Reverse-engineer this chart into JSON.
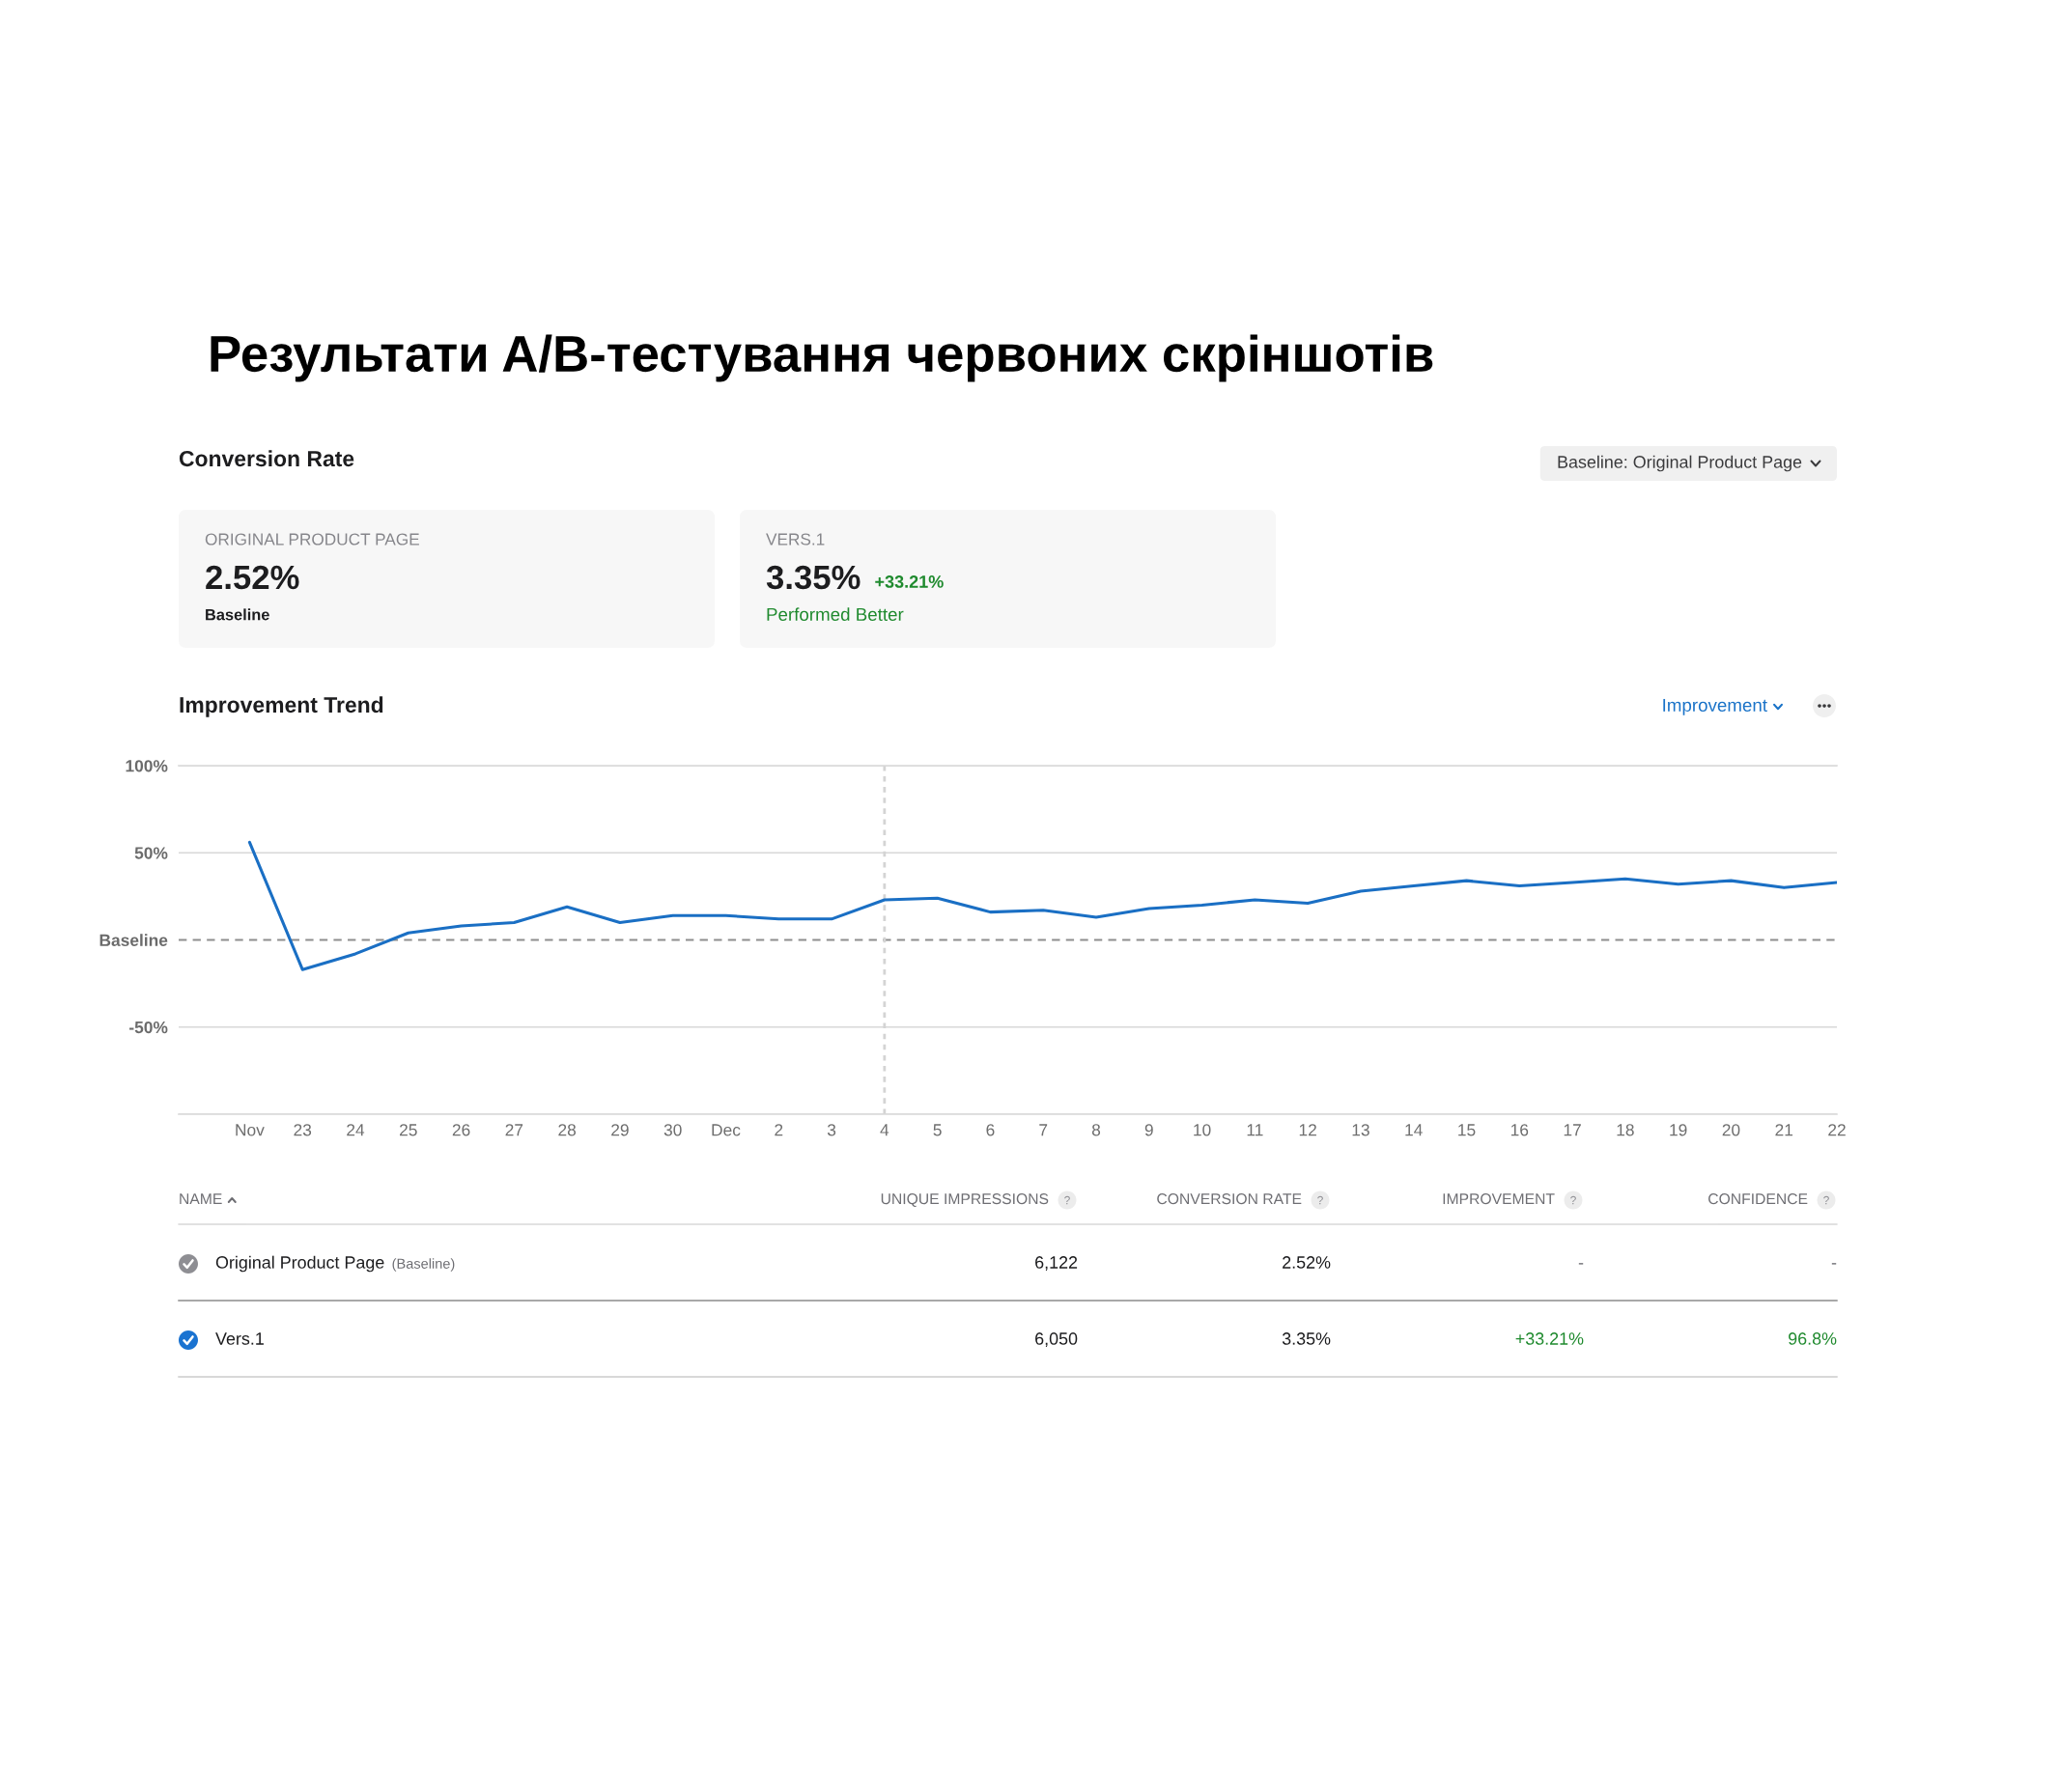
{
  "chart_data": [
    {
      "type": "other",
      "title": "Результати A/B-тестування червоних скріншотів",
      "subtitle": "Conversion Rate",
      "annotations": [
        "Baseline: Original Product Page",
        "ORIGINAL PRODUCT PAGE",
        "2.52%",
        "Baseline",
        "VERS.1",
        "3.35%",
        "+33.21%",
        "Performed Better"
      ]
    },
    {
      "type": "line",
      "title": "Improvement Trend",
      "annotations": [
        "Improvement"
      ],
      "categories": [
        "Nov",
        "23",
        "24",
        "25",
        "26",
        "27",
        "28",
        "29",
        "30",
        "Dec",
        "2",
        "3",
        "4",
        "5",
        "6",
        "7",
        "8",
        "9",
        "10",
        "11",
        "12",
        "13",
        "14",
        "15",
        "16",
        "17",
        "18",
        "19",
        "20",
        "21",
        "22"
      ],
      "series": [
        {
          "color": "#1a6fc4",
          "values": [
            56,
            -17,
            -8,
            4,
            8,
            10,
            19,
            10,
            14,
            14,
            12,
            12,
            23,
            24,
            16,
            17,
            13,
            18,
            20,
            23,
            21,
            28,
            31,
            34,
            31,
            33,
            35,
            32,
            34,
            30,
            33
          ]
        }
      ],
      "ylim": [
        -100,
        100
      ],
      "yticks": [
        {
          "value": 100,
          "label": "100%"
        },
        {
          "value": 50,
          "label": "50%"
        },
        {
          "value": 0,
          "label": "Baseline"
        },
        {
          "value": -50,
          "label": "-50%"
        },
        {
          "value": -100,
          "label": null
        }
      ],
      "grid": "y",
      "ref_lines": [
        {
          "axis": "y",
          "value": 0,
          "line_style": "dashed",
          "color": "#8e8e8e"
        },
        {
          "axis": "x",
          "value": "4",
          "line_style": "dotted",
          "color": "#d4d4d4"
        }
      ]
    },
    {
      "type": "other",
      "ylabel": "NAME",
      "categories": [
        "UNIQUE IMPRESSIONS",
        "CONVERSION RATE",
        "IMPROVEMENT",
        "CONFIDENCE"
      ],
      "y_categories": [
        "Original Product Page",
        "Vers.1"
      ],
      "cell_labels": [
        [
          "6,122",
          "2.52%",
          "-",
          "-"
        ],
        [
          "6,050",
          "3.35%",
          "+33.21%",
          "96.8%"
        ]
      ],
      "annotations": [
        "(Baseline)"
      ]
    }
  ]
}
